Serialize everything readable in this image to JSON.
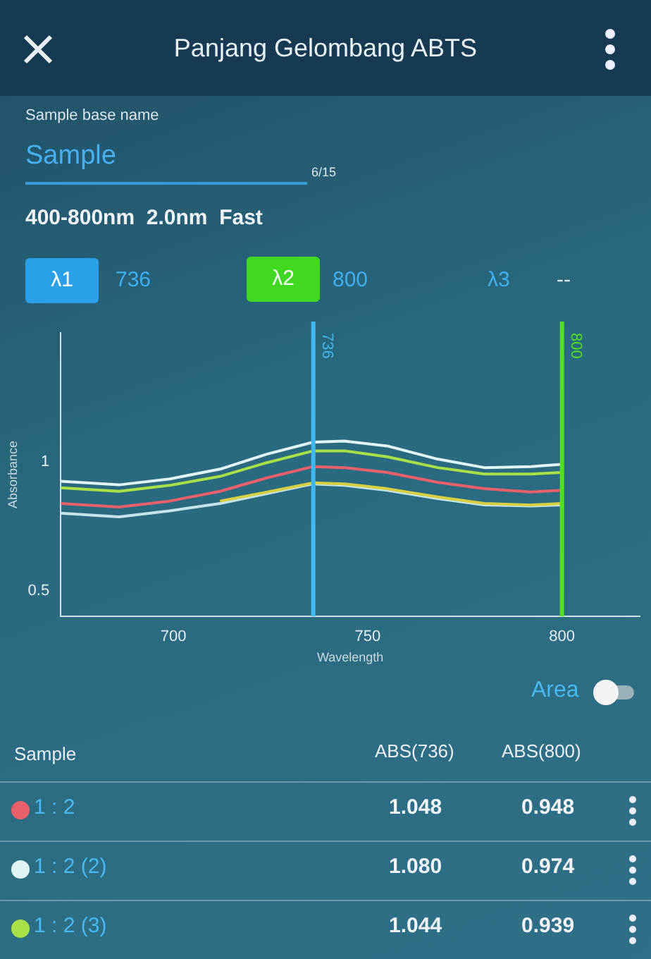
{
  "chart_data": {
    "type": "line",
    "title": "Panjang Gelombang ABTS",
    "xlabel": "Wavelength",
    "ylabel": "Absorbance",
    "x": [
      671,
      686,
      699,
      712,
      724,
      736,
      744,
      755,
      768,
      780,
      792,
      800
    ],
    "series": [
      {
        "name": "1 : 2",
        "color": "#e8606a",
        "values": [
          0.838,
          0.824,
          0.847,
          0.885,
          0.937,
          0.981,
          0.977,
          0.958,
          0.92,
          0.895,
          0.882,
          0.889
        ]
      },
      {
        "name": "1 : 2 (2)",
        "color": "#e0f4f4",
        "values": [
          0.924,
          0.91,
          0.933,
          0.971,
          1.029,
          1.076,
          1.08,
          1.061,
          1.01,
          0.977,
          0.981,
          0.99
        ]
      },
      {
        "name": "1 : 2 (3)",
        "color": "#a8e048",
        "values": [
          0.899,
          0.885,
          0.908,
          0.943,
          0.996,
          1.042,
          1.042,
          1.019,
          0.977,
          0.952,
          0.952,
          0.958
        ]
      },
      {
        "color": "#d8d040",
        "values": [
          null,
          null,
          null,
          0.847,
          0.882,
          0.918,
          0.914,
          0.895,
          0.863,
          0.838,
          0.832,
          0.838
        ]
      },
      {
        "color": "#c4e4e8",
        "values": [
          0.8,
          0.786,
          0.809,
          0.838,
          0.876,
          0.914,
          0.908,
          0.889,
          0.857,
          0.832,
          0.828,
          0.832
        ]
      }
    ],
    "legend": "bottom",
    "xlim": [
      671,
      820
    ],
    "xticks": [
      700,
      750,
      800
    ],
    "ylim": [
      0.4,
      1.5
    ],
    "yticks": [
      0.5,
      1
    ],
    "ref_lines": [
      {
        "axis": "x",
        "value": 736,
        "label": "736",
        "color": "#40b8f0"
      },
      {
        "axis": "x",
        "value": 800,
        "label": "800",
        "color": "#50e020"
      }
    ],
    "annotations": [
      "Sample base name",
      "Sample",
      "6/15",
      "400-800nm  2.0nm  Fast",
      "λ1",
      "736",
      "λ2",
      "800",
      "λ3",
      "--",
      "Area",
      "Sample",
      "ABS(736)",
      "ABS(800)",
      "1.048",
      "0.948",
      "1.080",
      "0.974",
      "1.044",
      "0.939"
    ]
  }
}
